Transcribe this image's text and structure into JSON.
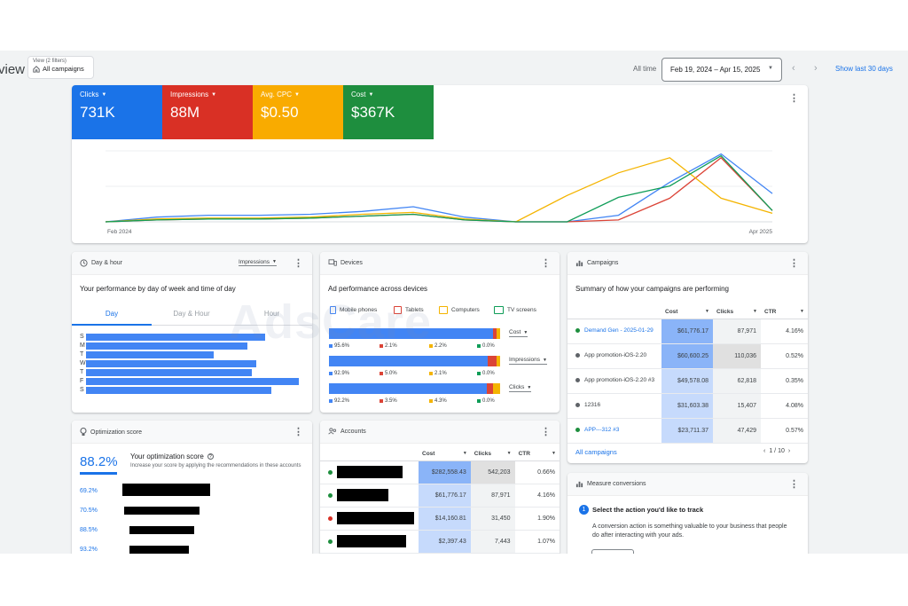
{
  "header": {
    "title_partial": "view",
    "view_filters": "View (2 filters)",
    "view_value": "All campaigns",
    "all_time": "All time",
    "date_range": "Feb 19, 2024 – Apr 15, 2025",
    "show_last": "Show last 30 days"
  },
  "metrics": [
    {
      "label": "Clicks",
      "value": "731K",
      "color": "#1a73e8"
    },
    {
      "label": "Impressions",
      "value": "88M",
      "color": "#d93025"
    },
    {
      "label": "Avg. CPC",
      "value": "$0.50",
      "color": "#f9ab00"
    },
    {
      "label": "Cost",
      "value": "$367K",
      "color": "#1e8e3e"
    }
  ],
  "chart_data": {
    "type": "line",
    "x_start_label": "Feb 2024",
    "x_end_label": "Apr 2025",
    "series": [
      {
        "color": "#4285f4",
        "values": [
          0,
          5,
          7,
          7,
          8,
          11,
          16,
          5,
          0,
          0,
          7,
          42,
          72,
          30
        ]
      },
      {
        "color": "#db4437",
        "values": [
          0,
          2,
          3,
          3,
          4,
          6,
          8,
          2,
          0,
          0,
          2,
          25,
          68,
          12
        ]
      },
      {
        "color": "#f4b400",
        "values": [
          0,
          3,
          4,
          4,
          5,
          8,
          10,
          3,
          0,
          28,
          52,
          68,
          25,
          9
        ]
      },
      {
        "color": "#0f9d58",
        "values": [
          0,
          2,
          3,
          3,
          4,
          6,
          8,
          2,
          0,
          0,
          26,
          38,
          70,
          12
        ]
      }
    ],
    "ylim": [
      0,
      80
    ]
  },
  "day_hour": {
    "title": "Day & hour",
    "selector": "Impressions",
    "subtitle": "Your performance by day of week and time of day",
    "tabs": [
      "Day",
      "Day & Hour",
      "Hour"
    ],
    "days": [
      "S",
      "M",
      "T",
      "W",
      "T",
      "F",
      "S"
    ],
    "values": [
      0.84,
      0.76,
      0.6,
      0.8,
      0.78,
      1.0,
      0.87
    ]
  },
  "devices": {
    "title": "Devices",
    "subtitle": "Ad performance across devices",
    "legend": [
      {
        "label": "Mobile phones",
        "color": "#4285f4"
      },
      {
        "label": "Tablets",
        "color": "#db4437"
      },
      {
        "label": "Computers",
        "color": "#f4b400"
      },
      {
        "label": "TV screens",
        "color": "#0f9d58"
      }
    ],
    "rows": [
      {
        "metric": "Cost",
        "values": [
          95.6,
          2.1,
          2.2,
          0.0
        ],
        "labels": [
          "95.6%",
          "2.1%",
          "2.2%",
          "0.0%"
        ]
      },
      {
        "metric": "Impressions",
        "values": [
          92.9,
          5.0,
          2.1,
          0.0
        ],
        "labels": [
          "92.9%",
          "5.0%",
          "2.1%",
          "0.0%"
        ]
      },
      {
        "metric": "Clicks",
        "values": [
          92.2,
          3.5,
          4.3,
          0.0
        ],
        "labels": [
          "92.2%",
          "3.5%",
          "4.3%",
          "0.0%"
        ]
      }
    ]
  },
  "campaigns": {
    "title": "Campaigns",
    "subtitle": "Summary of how your campaigns are performing",
    "columns": [
      "Cost",
      "Clicks",
      "CTR"
    ],
    "rows": [
      {
        "name": "Demand Gen - 2025-01-29",
        "status": "#1e8e3e",
        "link": true,
        "cost": "$61,776.17",
        "clicks": "87,971",
        "ctr": "4.16%"
      },
      {
        "name": "App promotion-iOS-2.20",
        "status": "#5f6368",
        "link": false,
        "cost": "$60,600.25",
        "clicks": "110,036",
        "ctr": "0.52%"
      },
      {
        "name": "App promotion-iOS-2.20 #3",
        "status": "#5f6368",
        "link": false,
        "cost": "$49,578.08",
        "clicks": "62,818",
        "ctr": "0.35%"
      },
      {
        "name": "12316",
        "status": "#5f6368",
        "link": false,
        "cost": "$31,603.38",
        "clicks": "15,407",
        "ctr": "4.08%"
      },
      {
        "name": "APP---312 #3",
        "status": "#1e8e3e",
        "link": true,
        "cost": "$23,711.37",
        "clicks": "47,429",
        "ctr": "0.57%"
      }
    ],
    "footer_link": "All campaigns",
    "pagination": "1 / 10"
  },
  "optimization": {
    "title": "Optimization score",
    "score": "88.2%",
    "score_title": "Your optimization score",
    "score_desc": "Increase your score by applying the recommendations in these accounts",
    "rows": [
      "69.2%",
      "70.5%",
      "88.5%",
      "93.2%"
    ]
  },
  "accounts": {
    "title": "Accounts",
    "columns": [
      "Cost",
      "Clicks",
      "CTR"
    ],
    "rows": [
      {
        "cost": "$282,558.43",
        "clicks": "542,203",
        "ctr": "0.66%",
        "status": "#1e8e3e"
      },
      {
        "cost": "$61,776.17",
        "clicks": "87,971",
        "ctr": "4.16%",
        "status": "#1e8e3e"
      },
      {
        "cost": "$14,160.81",
        "clicks": "31,450",
        "ctr": "1.90%",
        "status": "#d93025"
      },
      {
        "cost": "$2,397.43",
        "clicks": "7,443",
        "ctr": "1.07%",
        "status": "#1e8e3e"
      }
    ]
  },
  "conversions": {
    "title": "Measure conversions",
    "step": "1",
    "heading": "Select the action you'd like to track",
    "body": "A conversion action is something valuable to your business that people do after interacting with your ads."
  },
  "watermark": "AdsCare"
}
